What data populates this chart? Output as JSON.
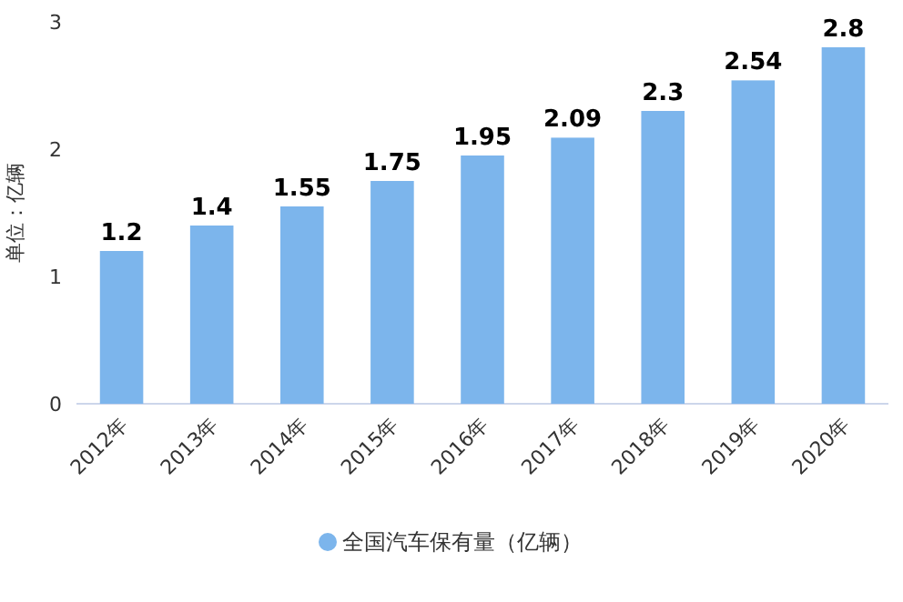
{
  "chart_data": {
    "type": "bar",
    "ylabel": "单位：亿辆",
    "categories": [
      "2012年",
      "2013年",
      "2014年",
      "2015年",
      "2016年",
      "2017年",
      "2018年",
      "2019年",
      "2020年"
    ],
    "series": [
      {
        "name": "全国汽车保有量（亿辆）",
        "color": "#7cb5ec",
        "values": [
          1.2,
          1.4,
          1.55,
          1.75,
          1.95,
          2.09,
          2.3,
          2.54,
          2.8
        ]
      }
    ],
    "ylim": [
      0,
      3
    ],
    "yticks": [
      0,
      1,
      2,
      3
    ],
    "data_labels": true,
    "legend": "bottom",
    "grid": false
  }
}
